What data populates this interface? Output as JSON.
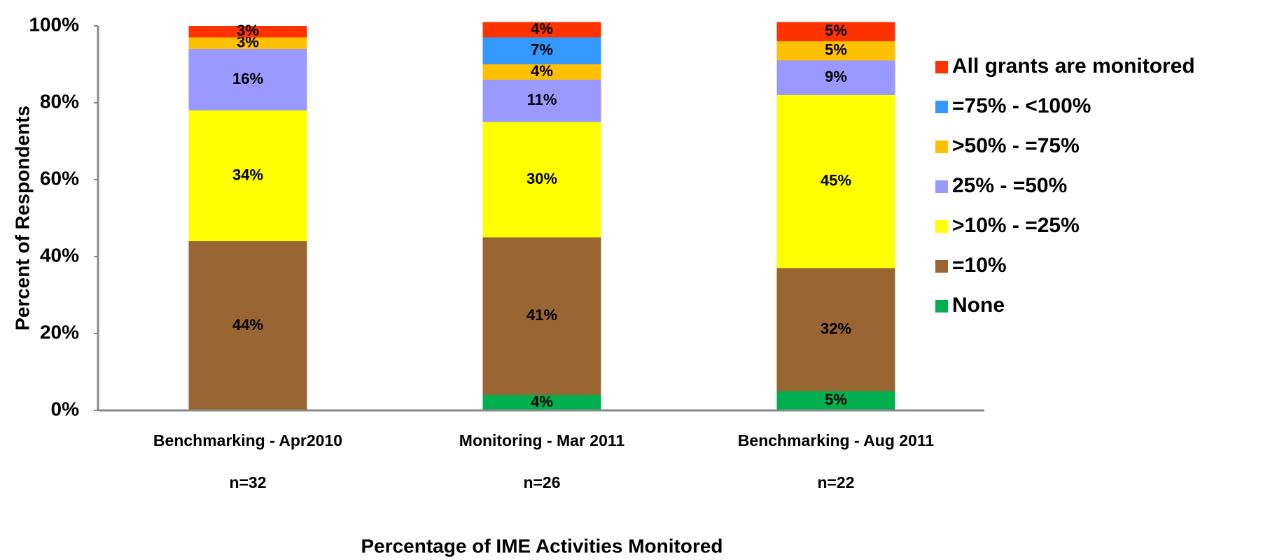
{
  "chart_data": {
    "type": "stacked_bar",
    "y_axis_label": "Percent of Respondents",
    "x_axis_label": "Percentage of IME Activities Monitored",
    "categories": [
      "Benchmarking - Apr2010",
      "Monitoring - Mar 2011",
      "Benchmarking - Aug 2011"
    ],
    "sample_sizes": [
      "n=32",
      "n=26",
      "n=22"
    ],
    "series": [
      {
        "name": "None",
        "color": "#00b050",
        "values": [
          0,
          4,
          5
        ],
        "value_labels": [
          null,
          "4%",
          "5%"
        ]
      },
      {
        "name": "=10%",
        "color": "#996633",
        "values": [
          44,
          41,
          32
        ],
        "value_labels": [
          "44%",
          "41%",
          "32%"
        ]
      },
      {
        "name": ">10% - =25%",
        "color": "#ffff00",
        "values": [
          34,
          30,
          45
        ],
        "value_labels": [
          "34%",
          "30%",
          "45%"
        ]
      },
      {
        "name": "25% - =50%",
        "color": "#9999ff",
        "values": [
          16,
          11,
          9
        ],
        "value_labels": [
          "16%",
          "11%",
          "9%"
        ]
      },
      {
        "name": ">50% - =75%",
        "color": "#ffc000",
        "values": [
          3,
          4,
          5
        ],
        "value_labels": [
          "3%",
          "4%",
          "5%"
        ]
      },
      {
        "name": "=75% - <100%",
        "color": "#3399ff",
        "values": [
          0,
          7,
          0
        ],
        "value_labels": [
          null,
          "7%",
          null
        ]
      },
      {
        "name": "All grants are monitored",
        "color": "#ff3300",
        "values": [
          3,
          4,
          5
        ],
        "value_labels": [
          "3%",
          "4%",
          "5%"
        ]
      }
    ],
    "ylim": [
      0,
      100
    ],
    "yticks": [
      {
        "value": 0,
        "label": "0%"
      },
      {
        "value": 20,
        "label": "20%"
      },
      {
        "value": 40,
        "label": "40%"
      },
      {
        "value": 60,
        "label": "60%"
      },
      {
        "value": 80,
        "label": "80%"
      },
      {
        "value": 100,
        "label": "100%"
      }
    ],
    "legend": "right"
  }
}
